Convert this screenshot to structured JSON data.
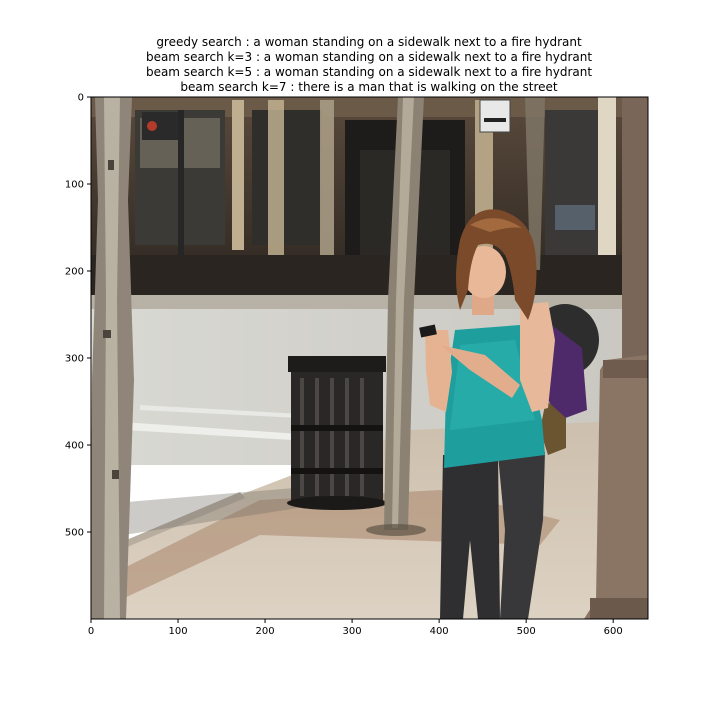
{
  "chart_data": {
    "type": "image",
    "title_lines": [
      "greedy search : a woman standing on a sidewalk next to a fire hydrant",
      "beam search k=3 :  a woman standing on a sidewalk next to a fire hydrant",
      "beam search k=5 :  a woman standing on a sidewalk next to a fire hydrant",
      "beam search k=7 :  there is a man that is walking on the street"
    ],
    "image_description": "photo of a woman in a teal top and dark jeans standing on a city sidewalk looking at her phone, with trees, a trash can and storefronts",
    "xlim": [
      0,
      640
    ],
    "ylim": [
      600,
      0
    ],
    "x_ticks": [
      0,
      100,
      200,
      300,
      400,
      500,
      600
    ],
    "y_ticks": [
      0,
      100,
      200,
      300,
      400,
      500
    ],
    "grid": false
  }
}
